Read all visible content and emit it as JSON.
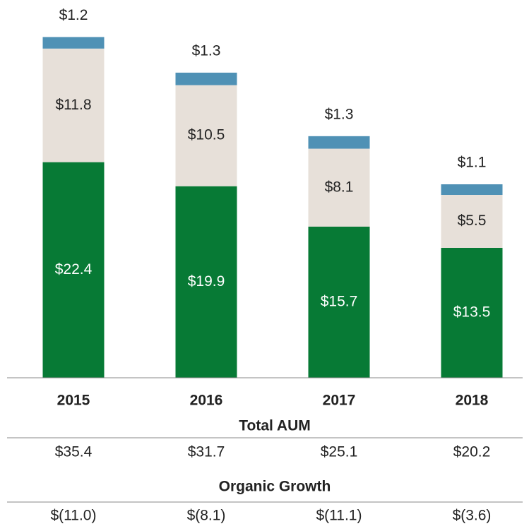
{
  "chart_data": {
    "type": "stacked_bar",
    "categories": [
      "2015",
      "2016",
      "2017",
      "2018"
    ],
    "series": [
      {
        "color": "#077a35",
        "values": [
          22.4,
          19.9,
          15.7,
          13.5
        ],
        "value_labels": [
          "$22.4",
          "$19.9",
          "$15.7",
          "$13.5"
        ]
      },
      {
        "color": "#e7e0d9",
        "values": [
          11.8,
          10.5,
          8.1,
          5.5
        ],
        "value_labels": [
          "$11.8",
          "$10.5",
          "$8.1",
          "$5.5"
        ]
      },
      {
        "color": "#4f91b5",
        "values": [
          1.2,
          1.3,
          1.3,
          1.1
        ],
        "value_labels": [
          "$1.2",
          "$1.3",
          "$1.3",
          "$1.1"
        ]
      }
    ],
    "ylim": [
      0,
      38
    ],
    "table": [
      {
        "title": "Total AUM",
        "values": [
          35.4,
          31.7,
          25.1,
          20.2
        ],
        "value_labels": [
          "$35.4",
          "$31.7",
          "$25.1",
          "$20.2"
        ]
      },
      {
        "title": "Organic Growth",
        "values": [
          -11.0,
          -8.1,
          -11.1,
          -3.6
        ],
        "value_labels": [
          "$(11.0)",
          "$(8.1)",
          "$(11.1)",
          "$(3.6)"
        ]
      }
    ]
  }
}
